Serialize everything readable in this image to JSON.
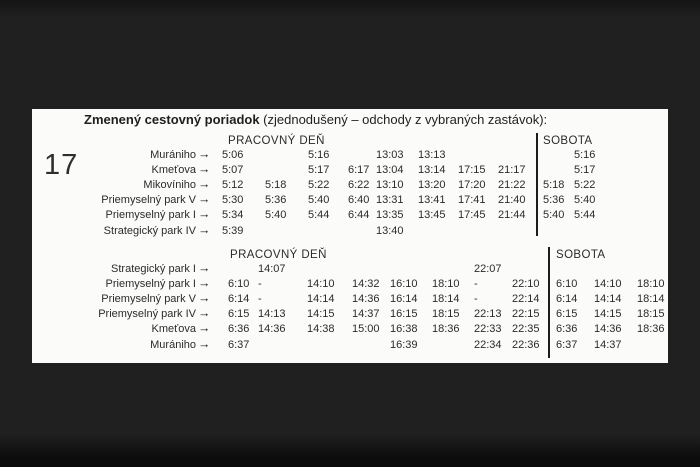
{
  "route_number": "17",
  "title": {
    "main": "Zmenený cestovný poriadok",
    "note": " (zjednodušený – odchody z vybraných zastávok):"
  },
  "icons": {
    "arrow": "→"
  },
  "colors": {
    "background": "#202020",
    "card": "#fbfbfa",
    "text": "#2b2b2b",
    "divider": "#1c1c1c"
  },
  "tables": [
    {
      "weekday_header": "PRACOVNÝ DEŇ",
      "saturday_header": "SOBOTA",
      "rows": [
        {
          "stop": "Murániho",
          "weekday": [
            "5:06",
            "",
            "5:16",
            "",
            "13:03",
            "13:13",
            "",
            ""
          ],
          "saturday": [
            "",
            "5:16"
          ]
        },
        {
          "stop": "Kmeťova",
          "weekday": [
            "5:07",
            "",
            "5:17",
            "6:17",
            "13:04",
            "13:14",
            "17:15",
            "21:17"
          ],
          "saturday": [
            "",
            "5:17"
          ]
        },
        {
          "stop": "Mikovíniho",
          "weekday": [
            "5:12",
            "5:18",
            "5:22",
            "6:22",
            "13:10",
            "13:20",
            "17:20",
            "21:22"
          ],
          "saturday": [
            "5:18",
            "5:22"
          ]
        },
        {
          "stop": "Priemyselný park V",
          "weekday": [
            "5:30",
            "5:36",
            "5:40",
            "6:40",
            "13:31",
            "13:41",
            "17:41",
            "21:40"
          ],
          "saturday": [
            "5:36",
            "5:40"
          ]
        },
        {
          "stop": "Priemyselný park I",
          "weekday": [
            "5:34",
            "5:40",
            "5:44",
            "6:44",
            "13:35",
            "13:45",
            "17:45",
            "21:44"
          ],
          "saturday": [
            "5:40",
            "5:44"
          ]
        },
        {
          "stop": "Strategický park IV",
          "weekday": [
            "5:39",
            "",
            "",
            "",
            "13:40",
            "",
            "",
            ""
          ],
          "saturday": [
            "",
            ""
          ]
        }
      ]
    },
    {
      "weekday_header": "PRACOVNÝ DEŇ",
      "saturday_header": "SOBOTA",
      "rows": [
        {
          "stop": "Strategický park I",
          "weekday": [
            "",
            "14:07",
            "",
            "",
            "",
            "",
            "22:07",
            ""
          ],
          "saturday": [
            "",
            "",
            ""
          ]
        },
        {
          "stop": "Priemyselný park I",
          "weekday": [
            "6:10",
            "-",
            "14:10",
            "14:32",
            "16:10",
            "18:10",
            "-",
            "22:10"
          ],
          "saturday": [
            "6:10",
            "14:10",
            "18:10"
          ]
        },
        {
          "stop": "Priemyselný park V",
          "weekday": [
            "6:14",
            "-",
            "14:14",
            "14:36",
            "16:14",
            "18:14",
            "-",
            "22:14"
          ],
          "saturday": [
            "6:14",
            "14:14",
            "18:14"
          ]
        },
        {
          "stop": "Priemyselný park IV",
          "weekday": [
            "6:15",
            "14:13",
            "14:15",
            "14:37",
            "16:15",
            "18:15",
            "22:13",
            "22:15"
          ],
          "saturday": [
            "6:15",
            "14:15",
            "18:15"
          ]
        },
        {
          "stop": "Kmeťova",
          "weekday": [
            "6:36",
            "14:36",
            "14:38",
            "15:00",
            "16:38",
            "18:36",
            "22:33",
            "22:35"
          ],
          "saturday": [
            "6:36",
            "14:36",
            "18:36"
          ]
        },
        {
          "stop": "Murániho",
          "weekday": [
            "6:37",
            "",
            "",
            "",
            "16:39",
            "",
            "22:34",
            "22:36"
          ],
          "saturday": [
            "6:37",
            "14:37",
            ""
          ]
        }
      ]
    }
  ]
}
